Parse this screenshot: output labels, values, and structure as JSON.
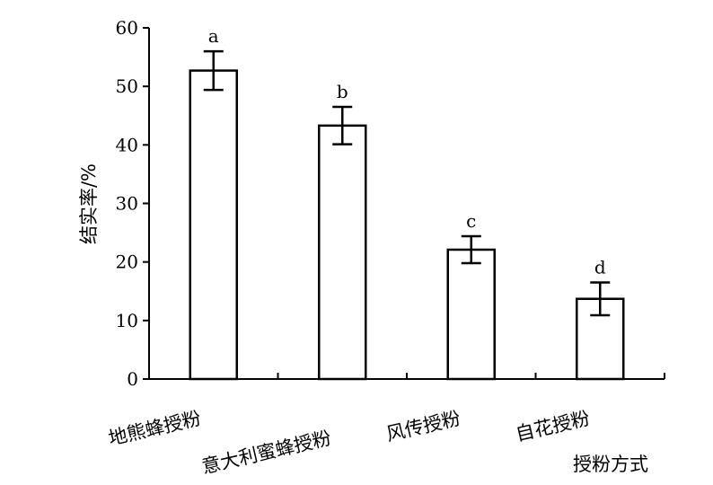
{
  "chart_data": {
    "type": "bar",
    "xlabel": "授粉方式",
    "ylabel": "结实率/%",
    "ylim": [
      0,
      60
    ],
    "yticks": [
      "0",
      "10",
      "20",
      "30",
      "40",
      "50",
      "60"
    ],
    "grid": false,
    "categories": [
      "地熊蜂授粉",
      "意大利蜜蜂授粉",
      "风传授粉",
      "自花授粉"
    ],
    "values": [
      52.7,
      43.3,
      22.1,
      13.7
    ],
    "errors": [
      3.3,
      3.2,
      2.3,
      2.8
    ],
    "significance": [
      "a",
      "b",
      "c",
      "d"
    ]
  }
}
